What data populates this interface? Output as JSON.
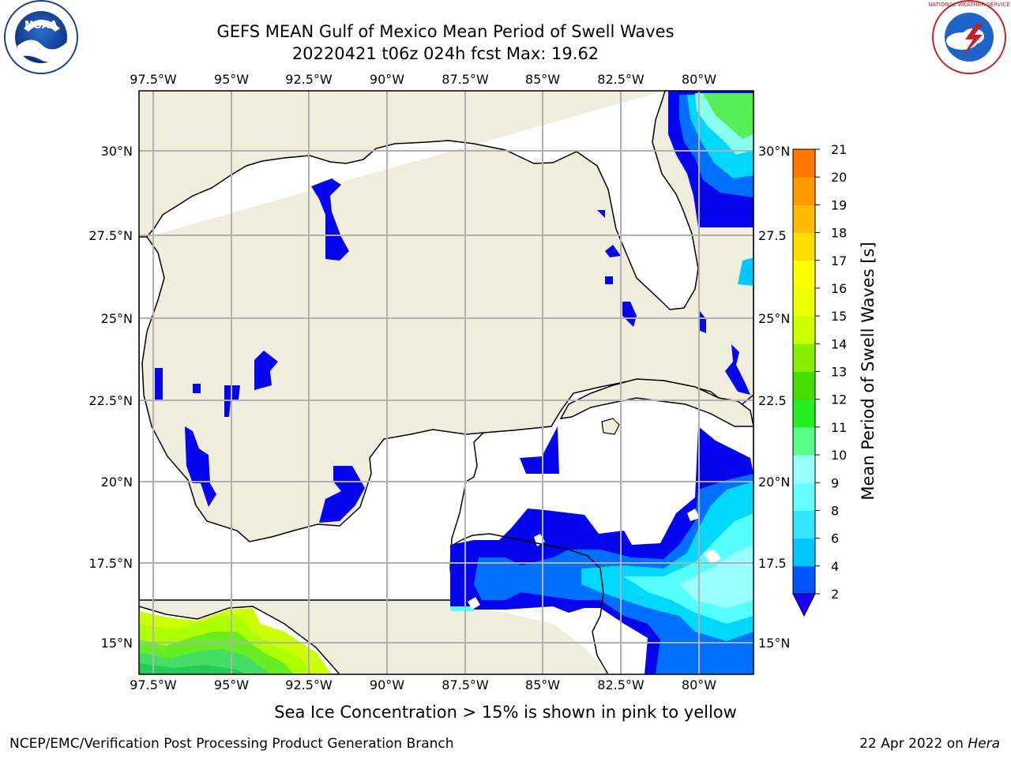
{
  "title": {
    "line1": "GEFS MEAN Gulf of Mexico Mean Period of Swell Waves",
    "line2": "20220421 t06z 024h fcst   Max: 19.62"
  },
  "map": {
    "lon_ticks": [
      "97.5°W",
      "95°W",
      "92.5°W",
      "90°W",
      "87.5°W",
      "85°W",
      "82.5°W",
      "80°W"
    ],
    "lat_ticks_left": [
      "30°N",
      "27.5°N",
      "25°N",
      "22.5°N",
      "20°N",
      "17.5°N",
      "15°N"
    ],
    "lat_ticks_right": [
      "30°N",
      "27.5",
      "25°N",
      "22.5",
      "20°N",
      "17.5",
      "15°N"
    ],
    "colors": {
      "land": "#efeedd",
      "ocean": "#ffffff",
      "grid": "#b0b0b0",
      "coast": "#000000"
    }
  },
  "colorbar": {
    "label": "Mean Period of Swell Waves [s]",
    "ticks": [
      "2",
      "4",
      "6",
      "8",
      "9",
      "10",
      "11",
      "12",
      "13",
      "14",
      "15",
      "16",
      "17",
      "18",
      "19",
      "20",
      "21"
    ],
    "colors": [
      "#0055ff",
      "#00c8ff",
      "#33e6ff",
      "#66ffff",
      "#99ffff",
      "#55ff88",
      "#22ee22",
      "#44dd00",
      "#88ee00",
      "#ccff00",
      "#eeff00",
      "#ffff00",
      "#ffdd00",
      "#ffbb00",
      "#ff9900",
      "#ff7700",
      "#ff5500",
      "#ff3300",
      "#ff0000"
    ],
    "extend_color": "#1a00ff"
  },
  "footnote": "Sea Ice Concentration > 15% is shown in pink to yellow",
  "footer": {
    "left": "NCEP/EMC/Verification Post Processing Product Generation Branch",
    "right_prefix": "22 Apr 2022 on ",
    "right_host": "Hera"
  },
  "logos": {
    "noaa": "NOAA",
    "nws": "NATIONAL WEATHER SERVICE"
  }
}
